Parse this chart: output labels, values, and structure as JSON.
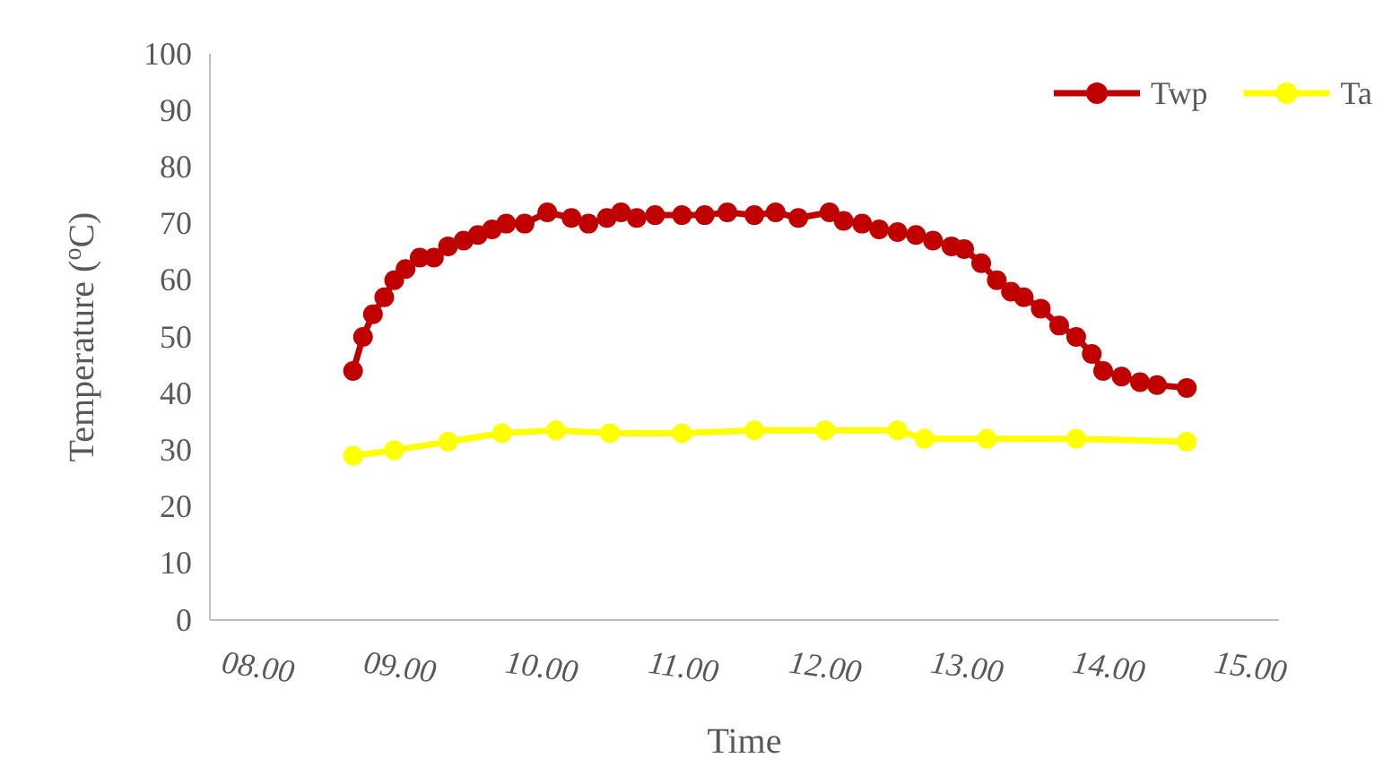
{
  "chart_data": {
    "type": "line",
    "xlabel": "Time",
    "ylabel": "Temperature ($^{o}$C)",
    "xlim": [
      7.67,
      15.21
    ],
    "ylim": [
      0,
      100
    ],
    "xticks": [
      {
        "value": 8,
        "label": "08.00"
      },
      {
        "value": 9,
        "label": "09.00"
      },
      {
        "value": 10,
        "label": "10.00"
      },
      {
        "value": 11,
        "label": "11.00"
      },
      {
        "value": 12,
        "label": "12.00"
      },
      {
        "value": 13,
        "label": "13.00"
      },
      {
        "value": 14,
        "label": "14.00"
      },
      {
        "value": 15,
        "label": "15.00"
      }
    ],
    "yticks": [
      0,
      10,
      20,
      30,
      40,
      50,
      60,
      70,
      80,
      90,
      100
    ],
    "grid": false,
    "legend": "top right",
    "marker": "circle",
    "line_style": "solid",
    "series": [
      {
        "name": "Twp",
        "color": "#c00000",
        "x": [
          8.68,
          8.75,
          8.82,
          8.9,
          8.97,
          9.05,
          9.15,
          9.25,
          9.35,
          9.46,
          9.56,
          9.66,
          9.76,
          9.89,
          10.05,
          10.22,
          10.34,
          10.47,
          10.57,
          10.68,
          10.81,
          11.0,
          11.16,
          11.32,
          11.51,
          11.66,
          11.82,
          12.04,
          12.14,
          12.27,
          12.39,
          12.52,
          12.65,
          12.77,
          12.9,
          12.99,
          13.11,
          13.22,
          13.32,
          13.41,
          13.53,
          13.66,
          13.78,
          13.89,
          13.97,
          14.1,
          14.23,
          14.35,
          14.56
        ],
        "values": [
          44,
          50,
          54,
          57,
          60,
          62,
          64,
          64,
          66,
          67,
          68,
          69,
          70,
          70,
          72,
          71,
          70,
          71,
          72,
          71,
          71.5,
          71.5,
          71.5,
          72,
          71.5,
          72,
          71,
          72,
          70.5,
          70,
          69,
          68.5,
          68,
          67,
          66,
          65.5,
          63,
          60,
          58,
          57,
          55,
          52,
          50,
          47,
          44,
          43,
          42,
          41.5,
          41
        ]
      },
      {
        "name": "Ta",
        "color": "#ffff00",
        "x": [
          8.68,
          8.97,
          9.35,
          9.73,
          10.11,
          10.49,
          11.0,
          11.51,
          12.01,
          12.52,
          12.71,
          13.15,
          13.78,
          14.56
        ],
        "values": [
          29,
          30,
          31.5,
          33,
          33.5,
          33,
          33,
          33.5,
          33.5,
          33.5,
          32,
          32,
          32,
          31.5
        ]
      }
    ]
  }
}
